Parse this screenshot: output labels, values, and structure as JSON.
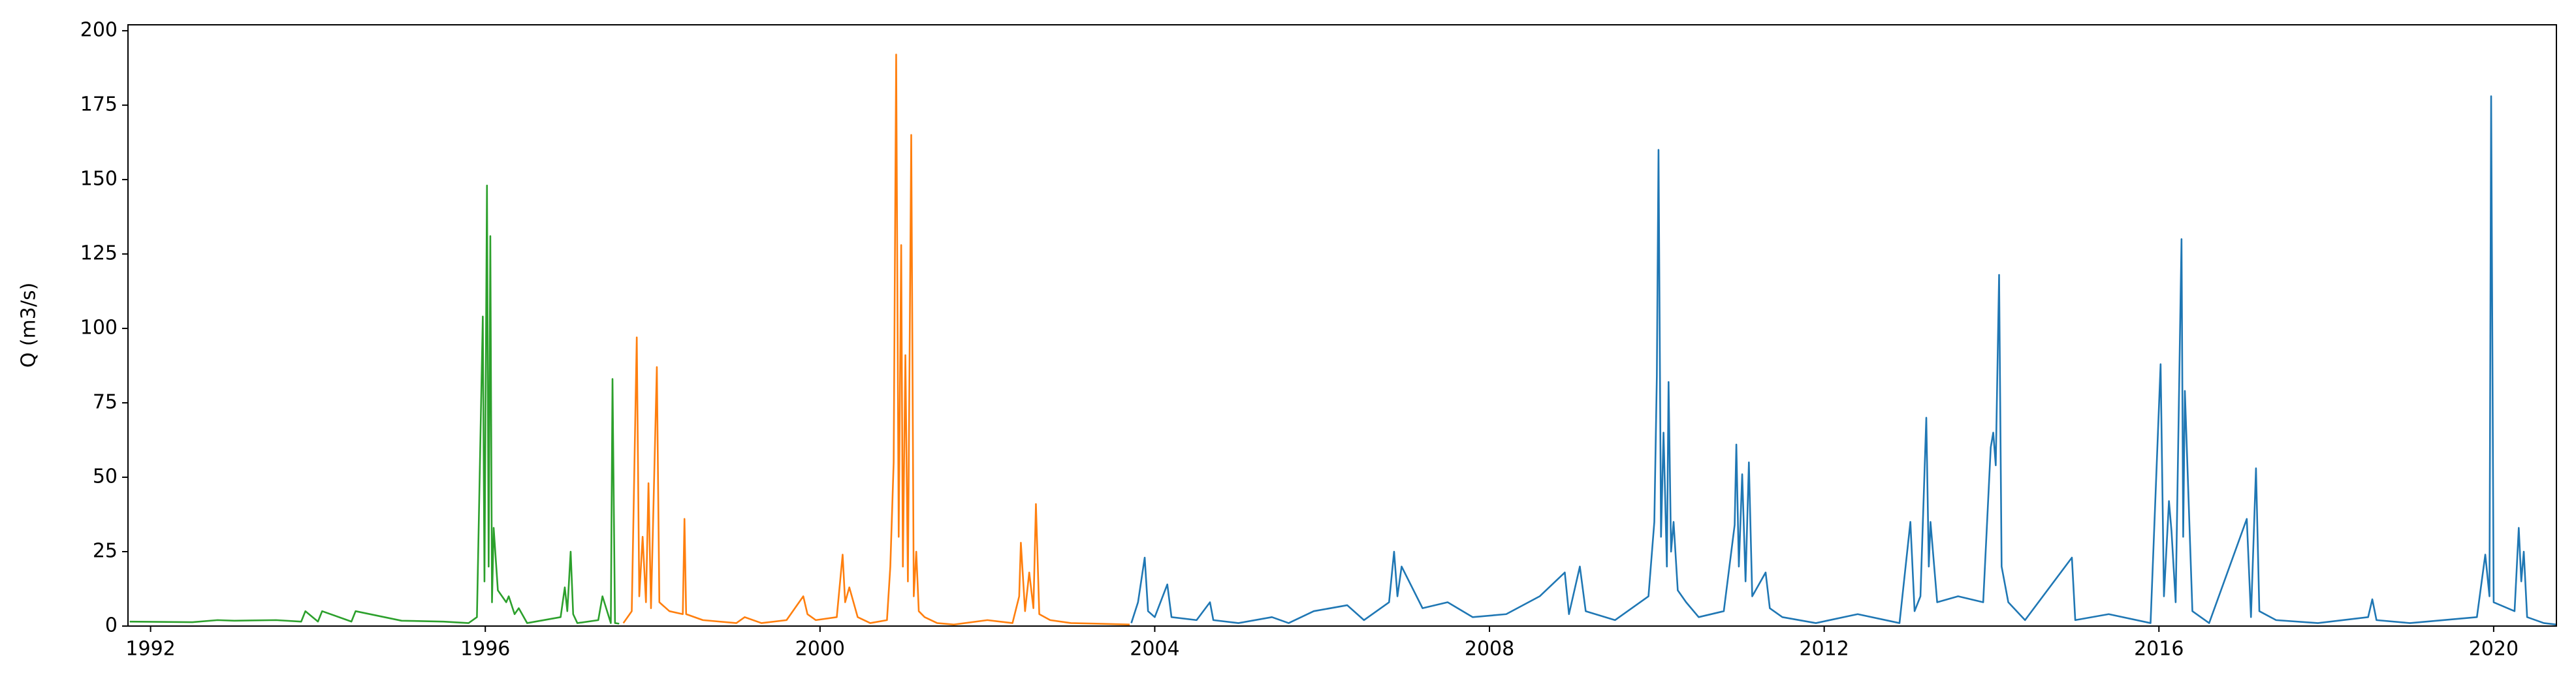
{
  "chart_data": {
    "type": "line",
    "ylabel": "Q (m3/s)",
    "xlim": [
      1991.73,
      2020.75
    ],
    "ylim": [
      0,
      202
    ],
    "xticks": [
      1992,
      1996,
      2000,
      2004,
      2008,
      2012,
      2016,
      2020
    ],
    "yticks": [
      0,
      25,
      50,
      75,
      100,
      125,
      150,
      175,
      200
    ],
    "grid": false,
    "series": [
      {
        "color": "#2ca02c",
        "x": [
          1991.75,
          1992.5,
          1992.8,
          1993.0,
          1993.5,
          1993.8,
          1993.85,
          1994.0,
          1994.05,
          1994.4,
          1994.45,
          1995.0,
          1995.5,
          1995.8,
          1995.9,
          1995.97,
          1995.99,
          1996.02,
          1996.04,
          1996.06,
          1996.08,
          1996.1,
          1996.15,
          1996.25,
          1996.28,
          1996.35,
          1996.4,
          1996.5,
          1996.9,
          1996.95,
          1996.98,
          1997.02,
          1997.05,
          1997.1,
          1997.35,
          1997.4,
          1997.5,
          1997.52,
          1997.55,
          1997.6
        ],
        "values": [
          1.5,
          1.3,
          2,
          1.8,
          2,
          1.5,
          5,
          1.5,
          5,
          1.5,
          5,
          1.8,
          1.5,
          1,
          3,
          104,
          15,
          148,
          20,
          131,
          8,
          33,
          12,
          8,
          10,
          4,
          6,
          1,
          3,
          13,
          5,
          25,
          4,
          1,
          2,
          10,
          1,
          83,
          1,
          0.8
        ]
      },
      {
        "color": "#ff7f0e",
        "x": [
          1997.65,
          1997.75,
          1997.81,
          1997.84,
          1997.88,
          1997.92,
          1997.95,
          1997.98,
          1998.05,
          1998.08,
          1998.2,
          1998.36,
          1998.38,
          1998.4,
          1998.6,
          1999.0,
          1999.1,
          1999.3,
          1999.6,
          1999.8,
          1999.85,
          1999.95,
          2000.2,
          2000.27,
          2000.3,
          2000.35,
          2000.45,
          2000.6,
          2000.8,
          2000.84,
          2000.88,
          2000.91,
          2000.94,
          2000.97,
          2000.99,
          2001.02,
          2001.05,
          2001.09,
          2001.12,
          2001.15,
          2001.18,
          2001.25,
          2001.4,
          2001.6,
          2002.0,
          2002.3,
          2002.38,
          2002.4,
          2002.45,
          2002.5,
          2002.55,
          2002.58,
          2002.62,
          2002.75,
          2003.0,
          2003.3,
          2003.7
        ],
        "values": [
          1,
          5,
          97,
          10,
          30,
          8,
          48,
          6,
          87,
          8,
          5,
          4,
          36,
          4,
          2,
          1,
          3,
          1,
          2,
          10,
          4,
          2,
          3,
          24,
          8,
          13,
          3,
          1,
          2,
          20,
          55,
          192,
          30,
          128,
          20,
          91,
          15,
          165,
          10,
          25,
          5,
          3,
          1,
          0.5,
          2,
          1,
          10,
          28,
          5,
          18,
          6,
          41,
          4,
          2,
          1,
          0.8,
          0.5
        ]
      },
      {
        "color": "#1f77b4",
        "x": [
          2003.72,
          2003.8,
          2003.88,
          2003.92,
          2004.0,
          2004.15,
          2004.2,
          2004.5,
          2004.66,
          2004.7,
          2005.0,
          2005.4,
          2005.6,
          2005.9,
          2006.3,
          2006.5,
          2006.8,
          2006.86,
          2006.9,
          2006.95,
          2007.2,
          2007.5,
          2007.8,
          2008.2,
          2008.6,
          2008.9,
          2008.95,
          2009.08,
          2009.15,
          2009.5,
          2009.9,
          2009.97,
          2010.0,
          2010.02,
          2010.05,
          2010.08,
          2010.12,
          2010.14,
          2010.17,
          2010.2,
          2010.25,
          2010.35,
          2010.5,
          2010.8,
          2010.93,
          2010.95,
          2010.98,
          2011.02,
          2011.06,
          2011.1,
          2011.14,
          2011.3,
          2011.35,
          2011.5,
          2011.9,
          2012.4,
          2012.9,
          2013.03,
          2013.08,
          2013.15,
          2013.22,
          2013.25,
          2013.27,
          2013.35,
          2013.6,
          2013.9,
          2013.99,
          2014.02,
          2014.05,
          2014.09,
          2014.12,
          2014.2,
          2014.4,
          2014.96,
          2015.0,
          2015.4,
          2015.9,
          2016.02,
          2016.06,
          2016.12,
          2016.15,
          2016.2,
          2016.27,
          2016.29,
          2016.31,
          2016.4,
          2016.6,
          2017.05,
          2017.1,
          2017.16,
          2017.2,
          2017.4,
          2017.9,
          2018.5,
          2018.55,
          2018.6,
          2019.0,
          2019.8,
          2019.9,
          2019.95,
          2019.97,
          2020.0,
          2020.25,
          2020.3,
          2020.33,
          2020.36,
          2020.4,
          2020.6,
          2020.75
        ],
        "values": [
          1,
          8,
          23,
          5,
          3,
          14,
          3,
          2,
          8,
          2,
          1,
          3,
          1,
          5,
          7,
          2,
          8,
          25,
          10,
          20,
          6,
          8,
          3,
          4,
          10,
          18,
          4,
          20,
          5,
          2,
          10,
          35,
          84,
          160,
          30,
          65,
          20,
          82,
          25,
          35,
          12,
          8,
          3,
          5,
          34,
          61,
          20,
          51,
          15,
          55,
          10,
          18,
          6,
          3,
          1,
          4,
          1,
          35,
          5,
          10,
          70,
          20,
          35,
          8,
          10,
          8,
          60,
          65,
          54,
          118,
          20,
          8,
          2,
          23,
          2,
          4,
          1,
          88,
          10,
          42,
          32,
          8,
          130,
          30,
          79,
          5,
          1,
          36,
          3,
          53,
          5,
          2,
          1,
          3,
          9,
          2,
          1,
          3,
          24,
          10,
          178,
          8,
          5,
          33,
          15,
          25,
          3,
          1,
          0.5
        ]
      }
    ]
  }
}
